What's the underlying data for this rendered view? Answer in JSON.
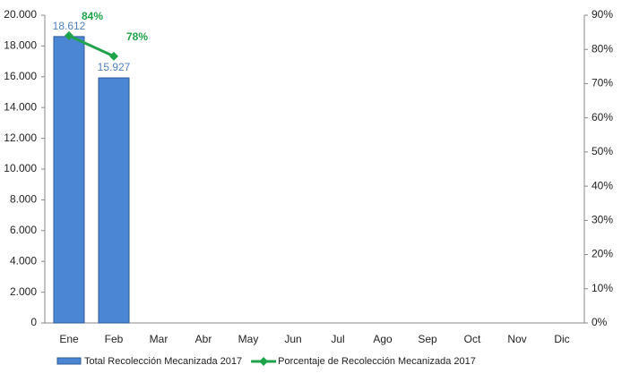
{
  "chart_data": {
    "type": "bar",
    "categories": [
      "Ene",
      "Feb",
      "Mar",
      "Abr",
      "May",
      "Jun",
      "Jul",
      "Ago",
      "Sep",
      "Oct",
      "Nov",
      "Dic"
    ],
    "series": [
      {
        "name": "Total Recolección Mecanizada 2017",
        "type": "bar",
        "color": "#4a86d4",
        "values": [
          18612,
          15927,
          null,
          null,
          null,
          null,
          null,
          null,
          null,
          null,
          null,
          null
        ],
        "value_labels": [
          "18.612",
          "15.927",
          null,
          null,
          null,
          null,
          null,
          null,
          null,
          null,
          null,
          null
        ]
      },
      {
        "name": "Porcentaje de Recolección Mecanizada 2017",
        "type": "line",
        "axis": "y2",
        "color": "#1fa34a",
        "values": [
          84,
          78,
          null,
          null,
          null,
          null,
          null,
          null,
          null,
          null,
          null,
          null
        ],
        "value_labels": [
          "84%",
          "78%",
          null,
          null,
          null,
          null,
          null,
          null,
          null,
          null,
          null,
          null
        ]
      }
    ],
    "ylim": [
      0,
      20000
    ],
    "yticks": [
      0,
      {
        "value": 2000,
        "label": "2.000"
      },
      {
        "value": 4000,
        "label": "4.000"
      },
      {
        "value": 6000,
        "label": "6.000"
      },
      {
        "value": 8000,
        "label": "8.000"
      },
      {
        "value": 10000,
        "label": "10.000"
      },
      {
        "value": 12000,
        "label": "12.000"
      },
      {
        "value": 14000,
        "label": "14.000"
      },
      {
        "value": 16000,
        "label": "16.000"
      },
      {
        "value": 18000,
        "label": "18.000"
      },
      {
        "value": 20000,
        "label": "20.000"
      }
    ],
    "y2lim": [
      0,
      90
    ],
    "y2ticks": [
      {
        "value": 0,
        "label": "0%"
      },
      {
        "value": 10,
        "label": "10%"
      },
      {
        "value": 20,
        "label": "20%"
      },
      {
        "value": 30,
        "label": "30%"
      },
      {
        "value": 40,
        "label": "40%"
      },
      {
        "value": 50,
        "label": "50%"
      },
      {
        "value": 60,
        "label": "60%"
      },
      {
        "value": 70,
        "label": "70%"
      },
      {
        "value": 80,
        "label": "80%"
      },
      {
        "value": 90,
        "label": "90%"
      }
    ],
    "grid": false,
    "legend": "bottom"
  }
}
